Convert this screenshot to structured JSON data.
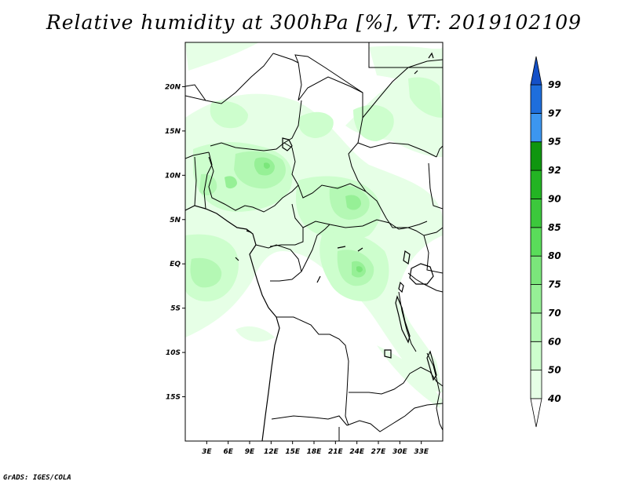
{
  "title": "Relative humidity at 300hPa [%], VT: 2019102109",
  "credit": "GrADS: IGES/COLA",
  "map": {
    "lon_range": [
      0,
      36
    ],
    "lat_range": [
      -20,
      25
    ],
    "lon_ticks": [
      "3E",
      "6E",
      "9E",
      "12E",
      "15E",
      "18E",
      "21E",
      "24E",
      "27E",
      "30E",
      "33E"
    ],
    "lat_ticks": [
      "20N",
      "15N",
      "10N",
      "5N",
      "EQ",
      "5S",
      "10S",
      "15S"
    ],
    "field_colors": {
      "40": "#e6ffe6",
      "50": "#cdfecd",
      "60": "#b4f8b4",
      "70": "#96f096",
      "75": "#7be67b"
    }
  },
  "colorbar": {
    "levels": [
      "40",
      "50",
      "60",
      "70",
      "75",
      "80",
      "85",
      "90",
      "92",
      "95",
      "97",
      "99"
    ],
    "colors": [
      "#e6ffe6",
      "#cdfecd",
      "#b4f8b4",
      "#96f096",
      "#7be67b",
      "#5adc5a",
      "#3cc83c",
      "#23b423",
      "#0f960f",
      "#3c96f0",
      "#1e6edc",
      "#1450c8"
    ],
    "under_color": "#ffffff",
    "over_color": "#1450c8"
  }
}
